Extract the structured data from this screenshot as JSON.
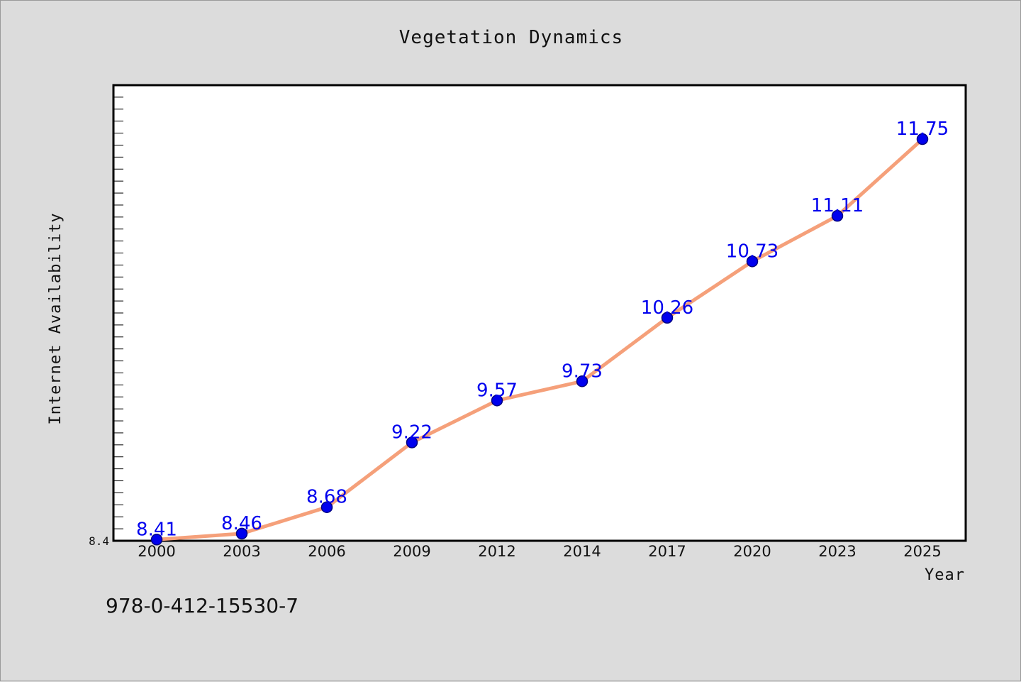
{
  "chart_data": {
    "type": "line",
    "title": "Vegetation Dynamics",
    "xlabel": "Year",
    "ylabel": "Internet Availability",
    "categories": [
      "2000",
      "2003",
      "2006",
      "2009",
      "2012",
      "2014",
      "2017",
      "2020",
      "2023",
      "2025"
    ],
    "series": [
      {
        "values": [
          8.41,
          8.46,
          8.68,
          9.22,
          9.57,
          9.73,
          10.26,
          10.73,
          11.11,
          11.75
        ],
        "labels": [
          "8.41",
          "8.46",
          "8.68",
          "9.22",
          "9.57",
          "9.73",
          "10.26",
          "10.73",
          "11.11",
          "11.75"
        ]
      }
    ],
    "ylim": [
      8.4,
      12.2
    ],
    "ytick_labels": [
      "8.4"
    ],
    "grid": false,
    "legend": "none",
    "colors": {
      "line": "#f5a07a",
      "marker_fill": "#0000ee",
      "marker_edge": "#000080",
      "data_label": "#0000ee",
      "plot_background": "#ffffff",
      "page_background": "#dcdcdc"
    }
  },
  "footer": {
    "isbn": "978-0-412-15530-7"
  }
}
